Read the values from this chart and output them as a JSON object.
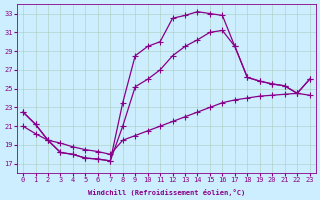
{
  "xlabel": "Windchill (Refroidissement éolien,°C)",
  "background_color": "#cceeff",
  "grid_color": "#aaccbb",
  "line_color": "#880088",
  "markersize": 2.5,
  "linewidth": 0.9,
  "xlim": [
    -0.5,
    23.5
  ],
  "ylim": [
    16.0,
    34.0
  ],
  "xticks": [
    0,
    1,
    2,
    3,
    4,
    5,
    6,
    7,
    8,
    9,
    10,
    11,
    12,
    13,
    14,
    15,
    16,
    17,
    18,
    19,
    20,
    21,
    22,
    23
  ],
  "yticks": [
    17,
    19,
    21,
    23,
    25,
    27,
    29,
    31,
    33
  ],
  "series1": [
    [
      0,
      22.5
    ],
    [
      1,
      21.2
    ],
    [
      2,
      19.5
    ],
    [
      3,
      18.2
    ],
    [
      4,
      18.0
    ],
    [
      5,
      17.6
    ],
    [
      6,
      17.5
    ],
    [
      7,
      17.3
    ],
    [
      8,
      23.5
    ],
    [
      9,
      28.5
    ],
    [
      10,
      29.5
    ],
    [
      11,
      30.0
    ],
    [
      12,
      32.5
    ],
    [
      13,
      32.8
    ],
    [
      14,
      33.2
    ],
    [
      15,
      33.0
    ],
    [
      16,
      32.8
    ],
    [
      17,
      29.5
    ],
    [
      18,
      26.2
    ],
    [
      19,
      25.8
    ],
    [
      20,
      25.5
    ],
    [
      21,
      25.3
    ],
    [
      22,
      24.5
    ],
    [
      23,
      26.0
    ]
  ],
  "series2": [
    [
      0,
      22.5
    ],
    [
      1,
      21.2
    ],
    [
      2,
      19.5
    ],
    [
      3,
      18.2
    ],
    [
      4,
      18.0
    ],
    [
      5,
      17.6
    ],
    [
      6,
      17.5
    ],
    [
      7,
      17.3
    ],
    [
      8,
      21.0
    ],
    [
      9,
      25.2
    ],
    [
      10,
      26.0
    ],
    [
      11,
      27.0
    ],
    [
      12,
      28.5
    ],
    [
      13,
      29.5
    ],
    [
      14,
      30.2
    ],
    [
      15,
      31.0
    ],
    [
      16,
      31.2
    ],
    [
      17,
      29.5
    ],
    [
      18,
      26.2
    ],
    [
      19,
      25.8
    ],
    [
      20,
      25.5
    ],
    [
      21,
      25.3
    ],
    [
      22,
      24.5
    ],
    [
      23,
      26.0
    ]
  ],
  "series3": [
    [
      0,
      21.0
    ],
    [
      1,
      20.2
    ],
    [
      2,
      19.5
    ],
    [
      3,
      19.2
    ],
    [
      4,
      18.8
    ],
    [
      5,
      18.5
    ],
    [
      6,
      18.3
    ],
    [
      7,
      18.0
    ],
    [
      8,
      19.5
    ],
    [
      9,
      20.0
    ],
    [
      10,
      20.5
    ],
    [
      11,
      21.0
    ],
    [
      12,
      21.5
    ],
    [
      13,
      22.0
    ],
    [
      14,
      22.5
    ],
    [
      15,
      23.0
    ],
    [
      16,
      23.5
    ],
    [
      17,
      23.8
    ],
    [
      18,
      24.0
    ],
    [
      19,
      24.2
    ],
    [
      20,
      24.3
    ],
    [
      21,
      24.4
    ],
    [
      22,
      24.5
    ],
    [
      23,
      24.3
    ]
  ]
}
